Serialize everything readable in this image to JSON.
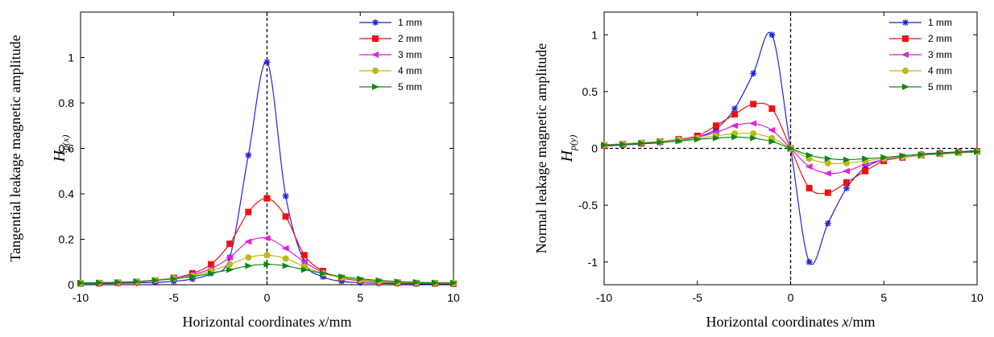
{
  "chart_data": [
    {
      "type": "line",
      "title": "",
      "xlabel_parts": [
        "Horizontal coordinates ",
        "x",
        "/mm"
      ],
      "ylabel_text": "Tangential leakage magnetic amplitude",
      "ylabel_symbol": {
        "base": "H",
        "sub": "p(x)"
      },
      "xlim": [
        -10,
        10
      ],
      "ylim": [
        0,
        1.2
      ],
      "xticks": [
        -10,
        -5,
        0,
        5,
        10
      ],
      "yticks": [
        0,
        0.2,
        0.4,
        0.6,
        0.8,
        1
      ],
      "xtick_labels": [
        "-10",
        "-5",
        "0",
        "5",
        "10"
      ],
      "ytick_labels": [
        "0",
        "0.2",
        "0.4",
        "0.6",
        "0.8",
        "1"
      ],
      "zero_line": "vertical",
      "grid": false,
      "legend": "top-right",
      "x": [
        -10,
        -9,
        -8,
        -7,
        -6,
        -5,
        -4,
        -3,
        -2,
        -1,
        0,
        1,
        2,
        3,
        4,
        5,
        6,
        7,
        8,
        9,
        10
      ],
      "series": [
        {
          "name": "1 mm",
          "color": "#2222dd",
          "marker": "star",
          "values": [
            0.005,
            0.005,
            0.006,
            0.008,
            0.01,
            0.015,
            0.025,
            0.05,
            0.12,
            0.57,
            0.98,
            0.39,
            0.1,
            0.035,
            0.015,
            0.009,
            0.006,
            0.005,
            0.004,
            0.004,
            0.003
          ]
        },
        {
          "name": "2 mm",
          "color": "#ee1111",
          "marker": "square",
          "values": [
            0.006,
            0.007,
            0.009,
            0.012,
            0.018,
            0.03,
            0.05,
            0.09,
            0.18,
            0.32,
            0.38,
            0.3,
            0.13,
            0.06,
            0.03,
            0.018,
            0.012,
            0.009,
            0.007,
            0.006,
            0.005
          ]
        },
        {
          "name": "3 mm",
          "color": "#dd22dd",
          "marker": "triangle-left",
          "values": [
            0.007,
            0.008,
            0.01,
            0.014,
            0.02,
            0.03,
            0.045,
            0.07,
            0.12,
            0.19,
            0.205,
            0.16,
            0.1,
            0.055,
            0.032,
            0.02,
            0.014,
            0.01,
            0.008,
            0.007,
            0.006
          ]
        },
        {
          "name": "4 mm",
          "color": "#bbbb11",
          "marker": "circle",
          "values": [
            0.008,
            0.009,
            0.011,
            0.014,
            0.02,
            0.028,
            0.04,
            0.06,
            0.09,
            0.12,
            0.13,
            0.115,
            0.08,
            0.05,
            0.032,
            0.021,
            0.015,
            0.011,
            0.009,
            0.008,
            0.007
          ]
        },
        {
          "name": "5 mm",
          "color": "#118811",
          "marker": "triangle-right",
          "values": [
            0.008,
            0.009,
            0.011,
            0.014,
            0.019,
            0.026,
            0.036,
            0.05,
            0.066,
            0.083,
            0.09,
            0.083,
            0.066,
            0.05,
            0.036,
            0.026,
            0.019,
            0.014,
            0.011,
            0.009,
            0.008
          ]
        }
      ]
    },
    {
      "type": "line",
      "title": "",
      "xlabel_parts": [
        "Horizontal coordinates ",
        "x",
        "/mm"
      ],
      "ylabel_text": "Normal leakage magnetic amplitude",
      "ylabel_symbol": {
        "base": "H",
        "sub": "p(y)"
      },
      "xlim": [
        -10,
        10
      ],
      "ylim": [
        -1.2,
        1.2
      ],
      "xticks": [
        -10,
        -5,
        0,
        5,
        10
      ],
      "yticks": [
        -1,
        -0.5,
        0,
        0.5,
        1
      ],
      "xtick_labels": [
        "-10",
        "-5",
        "0",
        "5",
        "10"
      ],
      "ytick_labels": [
        "-1",
        "-0.5",
        "0",
        "0.5",
        "1"
      ],
      "zero_line": "both",
      "grid": false,
      "legend": "top-right",
      "x": [
        -10,
        -9,
        -8,
        -7,
        -6,
        -5,
        -4,
        -3,
        -2,
        -1,
        0,
        1,
        2,
        3,
        4,
        5,
        6,
        7,
        8,
        9,
        10
      ],
      "series": [
        {
          "name": "1 mm",
          "color": "#2222dd",
          "marker": "star",
          "values": [
            0.02,
            0.03,
            0.04,
            0.05,
            0.07,
            0.1,
            0.17,
            0.35,
            0.66,
            1.0,
            0.0,
            -1.0,
            -0.66,
            -0.35,
            -0.17,
            -0.1,
            -0.07,
            -0.05,
            -0.04,
            -0.03,
            -0.02
          ]
        },
        {
          "name": "2 mm",
          "color": "#ee1111",
          "marker": "square",
          "values": [
            0.025,
            0.035,
            0.045,
            0.06,
            0.08,
            0.11,
            0.2,
            0.3,
            0.39,
            0.35,
            0.0,
            -0.35,
            -0.39,
            -0.3,
            -0.2,
            -0.11,
            -0.08,
            -0.06,
            -0.045,
            -0.035,
            -0.025
          ]
        },
        {
          "name": "3 mm",
          "color": "#dd22dd",
          "marker": "triangle-left",
          "values": [
            0.03,
            0.04,
            0.05,
            0.06,
            0.08,
            0.1,
            0.14,
            0.2,
            0.22,
            0.16,
            0.0,
            -0.16,
            -0.22,
            -0.2,
            -0.14,
            -0.1,
            -0.08,
            -0.06,
            -0.05,
            -0.04,
            -0.03
          ]
        },
        {
          "name": "4 mm",
          "color": "#bbbb11",
          "marker": "circle",
          "values": [
            0.03,
            0.04,
            0.05,
            0.06,
            0.075,
            0.09,
            0.11,
            0.13,
            0.13,
            0.09,
            0.0,
            -0.09,
            -0.13,
            -0.13,
            -0.11,
            -0.09,
            -0.075,
            -0.06,
            -0.05,
            -0.04,
            -0.03
          ]
        },
        {
          "name": "5 mm",
          "color": "#118811",
          "marker": "triangle-right",
          "values": [
            0.03,
            0.035,
            0.045,
            0.055,
            0.065,
            0.08,
            0.09,
            0.1,
            0.09,
            0.06,
            0.0,
            -0.06,
            -0.09,
            -0.1,
            -0.09,
            -0.08,
            -0.065,
            -0.055,
            -0.045,
            -0.035,
            -0.03
          ]
        }
      ]
    }
  ]
}
